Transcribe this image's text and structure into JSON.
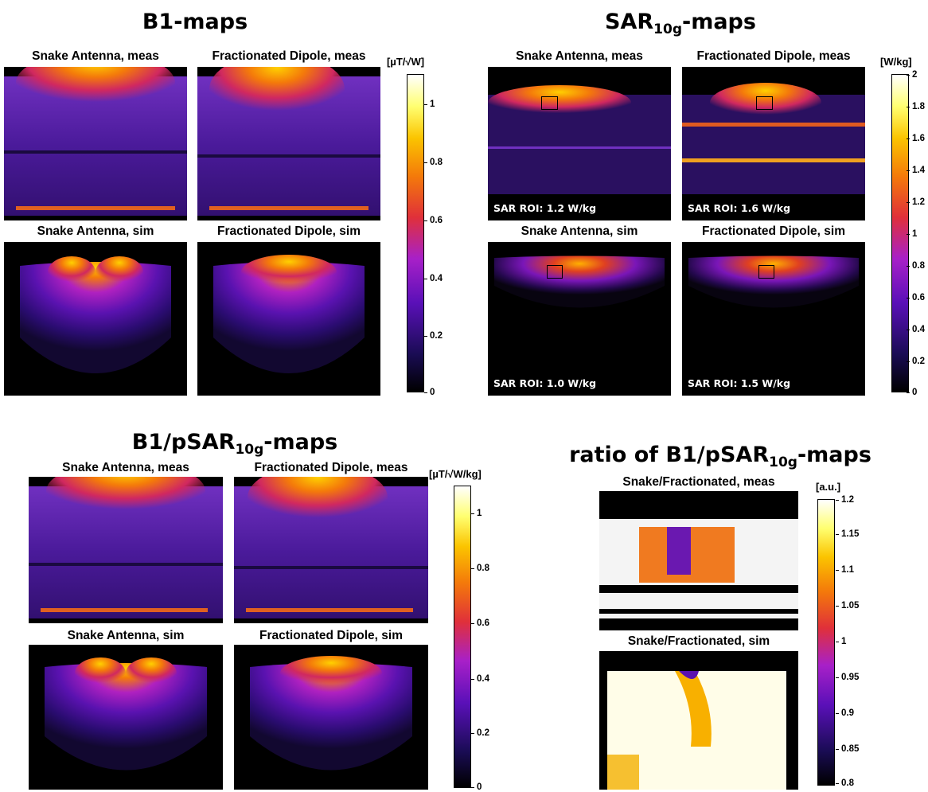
{
  "sections": {
    "b1": {
      "title": "B1-maps",
      "unit": "[µT/√W]",
      "panels": [
        "Snake Antenna, meas",
        "Fractionated Dipole, meas",
        "Snake Antenna, sim",
        "Fractionated Dipole, sim"
      ],
      "ticks": [
        "1",
        "0.8",
        "0.6",
        "0.4",
        "0.2",
        "0"
      ]
    },
    "sar": {
      "title_main": "SAR",
      "title_sub": "10g",
      "title_suffix": "-maps",
      "unit": "[W/kg]",
      "panels": [
        "Snake Antenna, meas",
        "Fractionated Dipole, meas",
        "Snake Antenna, sim",
        "Fractionated Dipole, sim"
      ],
      "roi": [
        "SAR ROI: 1.2 W/kg",
        "SAR ROI: 1.6 W/kg",
        "SAR ROI: 1.0 W/kg",
        "SAR ROI: 1.5 W/kg"
      ],
      "ticks": [
        "2",
        "1.8",
        "1.6",
        "1.4",
        "1.2",
        "1",
        "0.8",
        "0.6",
        "0.4",
        "0.2",
        "0"
      ]
    },
    "b1psar": {
      "title_main": "B1/pSAR",
      "title_sub": "10g",
      "title_suffix": "-maps",
      "unit": "[µT/√W/kg]",
      "panels": [
        "Snake Antenna, meas",
        "Fractionated Dipole, meas",
        "Snake Antenna, sim",
        "Fractionated Dipole, sim"
      ],
      "ticks": [
        "1",
        "0.8",
        "0.6",
        "0.4",
        "0.2",
        "0"
      ]
    },
    "ratio": {
      "title_main": "ratio of B1/pSAR",
      "title_sub": "10g",
      "title_suffix": "-maps",
      "unit": "[a.u.]",
      "panels": [
        "Snake/Fractionated, meas",
        "Snake/Fractionated, sim"
      ],
      "ticks": [
        "1.2",
        "1.15",
        "1.1",
        "1.05",
        "1",
        "0.95",
        "0.9",
        "0.85",
        "0.8"
      ]
    }
  },
  "colors": {
    "map_background": "#000000",
    "colormap_hot": [
      "#000000",
      "#1a0c55",
      "#5a10b8",
      "#a820c8",
      "#e0303a",
      "#f47a0a",
      "#fbc400",
      "#ffff70",
      "#ffffff"
    ]
  }
}
